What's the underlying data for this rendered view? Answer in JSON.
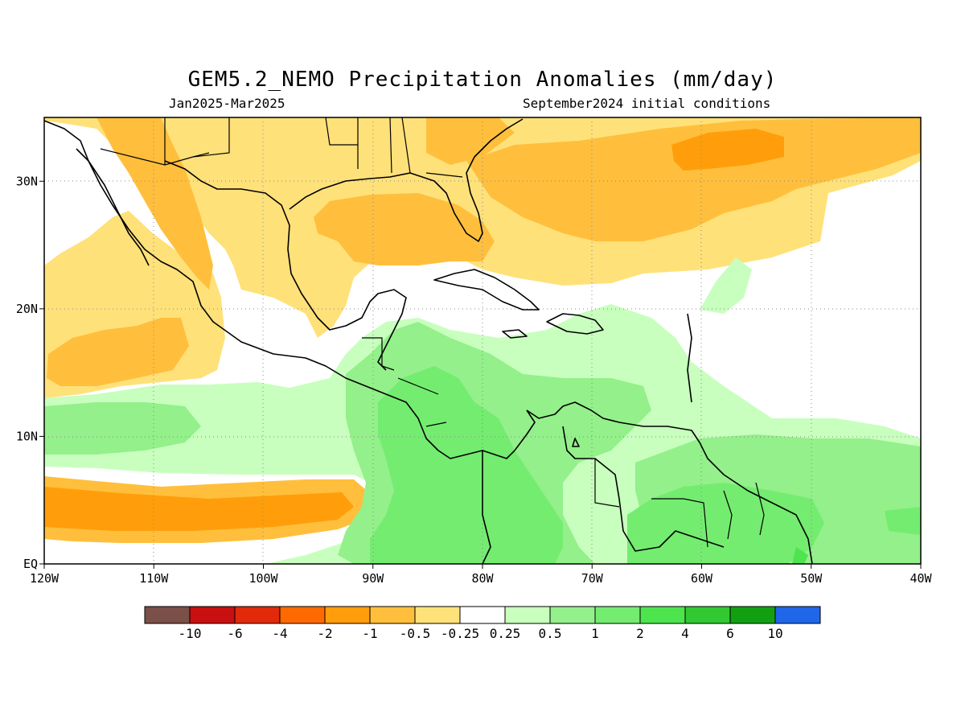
{
  "title": "GEM5.2_NEMO Precipitation Anomalies (mm/day)",
  "period": "Jan2025-Mar2025",
  "init": "September2024 initial conditions",
  "map": {
    "lon_range": [
      -120,
      -40
    ],
    "lat_range": [
      0,
      35
    ],
    "grid": "dotted",
    "lon_ticks": [
      {
        "lon": -120,
        "label": "120W"
      },
      {
        "lon": -110,
        "label": "110W"
      },
      {
        "lon": -100,
        "label": "100W"
      },
      {
        "lon": -90,
        "label": "90W"
      },
      {
        "lon": -80,
        "label": "80W"
      },
      {
        "lon": -70,
        "label": "70W"
      },
      {
        "lon": -60,
        "label": "60W"
      },
      {
        "lon": -50,
        "label": "50W"
      },
      {
        "lon": -40,
        "label": "40W"
      }
    ],
    "lat_ticks": [
      {
        "lat": 0,
        "label": "EQ"
      },
      {
        "lat": 10,
        "label": "10N"
      },
      {
        "lat": 20,
        "label": "20N"
      },
      {
        "lat": 30,
        "label": "30N"
      }
    ]
  },
  "colorbar": {
    "colors": [
      "#7a5048",
      "#c81010",
      "#e02a0a",
      "#ff6a00",
      "#ff9e0a",
      "#ffbf3c",
      "#ffe17a",
      "#ffffff",
      "#c8ffbe",
      "#94f08a",
      "#74ec70",
      "#4ee44e",
      "#32c832",
      "#12a012",
      "#2066e8"
    ],
    "labels": [
      "-10",
      "-6",
      "-4",
      "-2",
      "-1",
      "-0.5",
      "-0.25",
      "0.25",
      "0.5",
      "1",
      "2",
      "4",
      "6",
      "10"
    ]
  }
}
